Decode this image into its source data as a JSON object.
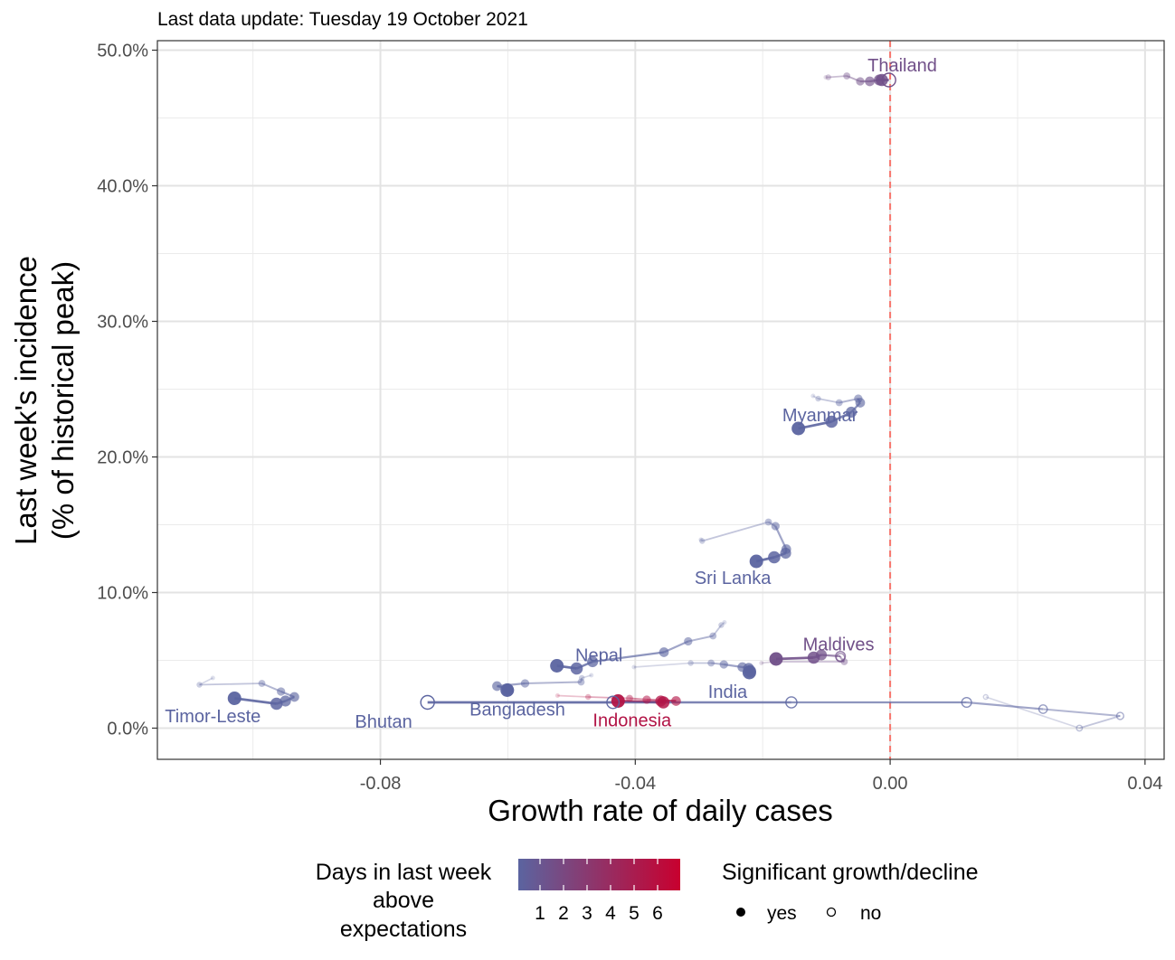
{
  "subtitle": "Last data update: Tuesday 19 October 2021",
  "chart_data": {
    "type": "scatter",
    "xlabel": "Growth rate of daily cases",
    "ylabel_line1": "Last week's incidence",
    "ylabel_line2": "(% of historical peak)",
    "xlim": [
      -0.115,
      0.043
    ],
    "ylim": [
      -2.3,
      50.7
    ],
    "x_ticks": [
      -0.08,
      -0.04,
      0.0,
      0.04
    ],
    "x_tick_labels": [
      "-0.08",
      "-0.04",
      "0.00",
      "0.04"
    ],
    "y_ticks": [
      0,
      10,
      20,
      30,
      40,
      50
    ],
    "y_tick_labels": [
      "0.0%",
      "10.0%",
      "20.0%",
      "30.0%",
      "40.0%",
      "50.0%"
    ],
    "grid": true,
    "reference_line": {
      "x": 0,
      "color": "#f8766d",
      "style": "dashed"
    },
    "series": [
      {
        "name": "Thailand",
        "days": 2,
        "label": {
          "x": 0.0019,
          "y": 48.9
        },
        "points": [
          {
            "x": -0.0101,
            "y": 48.0,
            "sig": true
          },
          {
            "x": -0.0097,
            "y": 48.0,
            "sig": true
          },
          {
            "x": -0.0068,
            "y": 48.1,
            "sig": true
          },
          {
            "x": -0.0047,
            "y": 47.7,
            "sig": true
          },
          {
            "x": -0.0032,
            "y": 47.7,
            "sig": true
          },
          {
            "x": -0.0017,
            "y": 47.8,
            "sig": true
          },
          {
            "x": -0.0013,
            "y": 47.8,
            "sig": true
          },
          {
            "x": -0.0002,
            "y": 47.8,
            "sig": false
          }
        ]
      },
      {
        "name": "Myanmar",
        "days": 1,
        "label": {
          "x": -0.011,
          "y": 23.1
        },
        "points": [
          {
            "x": -0.0121,
            "y": 24.5,
            "sig": true
          },
          {
            "x": -0.0113,
            "y": 24.3,
            "sig": true
          },
          {
            "x": -0.008,
            "y": 24.0,
            "sig": true
          },
          {
            "x": -0.005,
            "y": 24.3,
            "sig": true
          },
          {
            "x": -0.0047,
            "y": 24.0,
            "sig": true
          },
          {
            "x": -0.0061,
            "y": 23.3,
            "sig": true
          },
          {
            "x": -0.0092,
            "y": 22.6,
            "sig": true
          },
          {
            "x": -0.0144,
            "y": 22.1,
            "sig": true
          }
        ]
      },
      {
        "name": "Sri Lanka",
        "days": 1,
        "label": {
          "x": -0.0247,
          "y": 11.1
        },
        "points": [
          {
            "x": -0.0297,
            "y": 13.9,
            "sig": true
          },
          {
            "x": -0.0295,
            "y": 13.8,
            "sig": true
          },
          {
            "x": -0.0191,
            "y": 15.2,
            "sig": true
          },
          {
            "x": -0.018,
            "y": 14.9,
            "sig": true
          },
          {
            "x": -0.0163,
            "y": 13.2,
            "sig": true
          },
          {
            "x": -0.0164,
            "y": 12.9,
            "sig": true
          },
          {
            "x": -0.0182,
            "y": 12.6,
            "sig": true
          },
          {
            "x": -0.021,
            "y": 12.3,
            "sig": true
          }
        ]
      },
      {
        "name": "Maldives",
        "days": 2,
        "label": {
          "x": -0.0081,
          "y": 6.2
        },
        "points": [
          {
            "x": -0.0202,
            "y": 4.8,
            "sig": true
          },
          {
            "x": -0.0182,
            "y": 4.9,
            "sig": true
          },
          {
            "x": -0.0072,
            "y": 4.9,
            "sig": true
          },
          {
            "x": -0.0078,
            "y": 5.2,
            "sig": false
          },
          {
            "x": -0.0078,
            "y": 5.3,
            "sig": false
          },
          {
            "x": -0.0108,
            "y": 5.4,
            "sig": true
          },
          {
            "x": -0.012,
            "y": 5.2,
            "sig": true
          },
          {
            "x": -0.0179,
            "y": 5.1,
            "sig": true
          }
        ]
      },
      {
        "name": "Nepal",
        "days": 1,
        "label": {
          "x": -0.0457,
          "y": 5.4
        },
        "points": [
          {
            "x": -0.026,
            "y": 7.8,
            "sig": true
          },
          {
            "x": -0.0265,
            "y": 7.6,
            "sig": true
          },
          {
            "x": -0.0278,
            "y": 6.8,
            "sig": true
          },
          {
            "x": -0.0317,
            "y": 6.4,
            "sig": true
          },
          {
            "x": -0.0355,
            "y": 5.6,
            "sig": true
          },
          {
            "x": -0.0467,
            "y": 4.9,
            "sig": true
          },
          {
            "x": -0.0492,
            "y": 4.4,
            "sig": true
          },
          {
            "x": -0.0523,
            "y": 4.6,
            "sig": true
          }
        ]
      },
      {
        "name": "India",
        "days": 1,
        "label": {
          "x": -0.0255,
          "y": 2.7
        },
        "points": [
          {
            "x": -0.0402,
            "y": 4.5,
            "sig": true
          },
          {
            "x": -0.0313,
            "y": 4.8,
            "sig": true
          },
          {
            "x": -0.0281,
            "y": 4.8,
            "sig": true
          },
          {
            "x": -0.0261,
            "y": 4.7,
            "sig": true
          },
          {
            "x": -0.0232,
            "y": 4.5,
            "sig": true
          },
          {
            "x": -0.0222,
            "y": 4.4,
            "sig": true
          },
          {
            "x": -0.022,
            "y": 4.2,
            "sig": true
          },
          {
            "x": -0.0221,
            "y": 4.1,
            "sig": true
          }
        ]
      },
      {
        "name": "Bangladesh",
        "days": 1,
        "label": {
          "x": -0.0585,
          "y": 1.4
        },
        "points": [
          {
            "x": -0.0469,
            "y": 3.9,
            "sig": true
          },
          {
            "x": -0.0484,
            "y": 3.7,
            "sig": true
          },
          {
            "x": -0.0485,
            "y": 3.4,
            "sig": true
          },
          {
            "x": -0.0573,
            "y": 3.3,
            "sig": true
          },
          {
            "x": -0.0617,
            "y": 3.1,
            "sig": true
          },
          {
            "x": -0.06,
            "y": 2.9,
            "sig": true
          },
          {
            "x": -0.06,
            "y": 2.8,
            "sig": true
          },
          {
            "x": -0.0601,
            "y": 2.8,
            "sig": true
          }
        ]
      },
      {
        "name": "Timor-Leste",
        "days": 1,
        "label": {
          "x": -0.1063,
          "y": 0.9
        },
        "points": [
          {
            "x": -0.1063,
            "y": 3.7,
            "sig": true
          },
          {
            "x": -0.1084,
            "y": 3.2,
            "sig": true
          },
          {
            "x": -0.0986,
            "y": 3.3,
            "sig": true
          },
          {
            "x": -0.0956,
            "y": 2.7,
            "sig": true
          },
          {
            "x": -0.0935,
            "y": 2.3,
            "sig": true
          },
          {
            "x": -0.0949,
            "y": 2.0,
            "sig": true
          },
          {
            "x": -0.0963,
            "y": 1.8,
            "sig": true
          },
          {
            "x": -0.1029,
            "y": 2.2,
            "sig": true
          }
        ]
      },
      {
        "name": "Indonesia",
        "days": 5,
        "label": {
          "x": -0.0405,
          "y": 0.6
        },
        "points": [
          {
            "x": -0.0522,
            "y": 2.4,
            "sig": true
          },
          {
            "x": -0.0474,
            "y": 2.3,
            "sig": true
          },
          {
            "x": -0.0409,
            "y": 2.2,
            "sig": true
          },
          {
            "x": -0.0382,
            "y": 2.1,
            "sig": true
          },
          {
            "x": -0.0336,
            "y": 2.0,
            "sig": true
          },
          {
            "x": -0.036,
            "y": 2.0,
            "sig": true
          },
          {
            "x": -0.0356,
            "y": 1.9,
            "sig": true
          },
          {
            "x": -0.0427,
            "y": 2.0,
            "sig": true
          }
        ]
      },
      {
        "name": "Bhutan",
        "days": 1,
        "label": {
          "x": -0.0795,
          "y": 0.5
        },
        "points": [
          {
            "x": 0.015,
            "y": 2.3,
            "sig": false
          },
          {
            "x": 0.0297,
            "y": 0.0,
            "sig": false
          },
          {
            "x": 0.0361,
            "y": 0.9,
            "sig": false
          },
          {
            "x": 0.024,
            "y": 1.4,
            "sig": false
          },
          {
            "x": 0.012,
            "y": 1.9,
            "sig": false
          },
          {
            "x": -0.0155,
            "y": 1.9,
            "sig": false
          },
          {
            "x": -0.0435,
            "y": 1.9,
            "sig": false
          },
          {
            "x": -0.0726,
            "y": 1.9,
            "sig": false
          }
        ]
      }
    ],
    "legend": {
      "placement": "bottom",
      "color_title_lines": [
        "Days in last week",
        "above",
        "expectations"
      ],
      "color_ticks": [
        "1",
        "2",
        "3",
        "4",
        "5",
        "6"
      ],
      "color_low": "#5b64a0",
      "color_high": "#c8002f",
      "shape_title": "Significant growth/decline",
      "shape_items": [
        {
          "label": "yes",
          "filled": true
        },
        {
          "label": "no",
          "filled": false
        }
      ]
    }
  }
}
